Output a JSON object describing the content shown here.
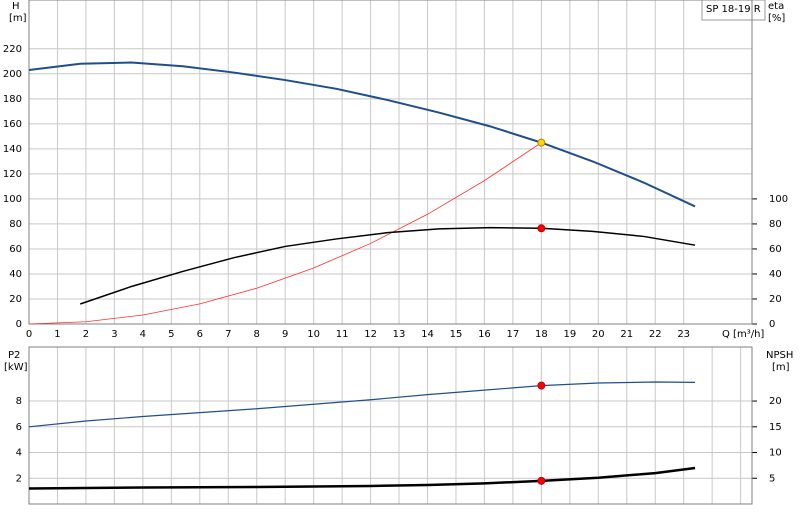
{
  "chart_data": [
    {
      "type": "line",
      "title": "SP 18-19 R",
      "xlabel": "Q [m³/h]",
      "ylabel": "H",
      "yunit": "[m]",
      "y2label": "eta",
      "y2unit": "[%]",
      "xlim": [
        0,
        25.4
      ],
      "xticks": [
        0,
        1,
        2,
        3,
        4,
        5,
        6,
        7,
        8,
        9,
        10,
        11,
        12,
        13,
        14,
        15,
        16,
        17,
        18,
        19,
        20,
        21,
        22,
        23
      ],
      "ylim": [
        0,
        259
      ],
      "yticks": [
        0,
        20,
        40,
        60,
        80,
        100,
        120,
        140,
        160,
        180,
        200,
        220
      ],
      "y2lim": [
        0,
        259
      ],
      "y2ticks": [
        0,
        20,
        40,
        60,
        80,
        100
      ],
      "grid": true,
      "xtick_labels": true,
      "series": [
        {
          "color": "#1f4e8c",
          "width": 2,
          "x": [
            0,
            1.8,
            3.6,
            5.4,
            7.2,
            9,
            10.8,
            12.6,
            14.4,
            16.2,
            18,
            19.8,
            21.6,
            23.4
          ],
          "values": [
            203,
            208,
            209,
            206,
            201,
            195,
            188,
            179,
            169,
            158,
            145,
            130,
            113,
            94
          ]
        },
        {
          "color": "#ff3030",
          "width": 0.8,
          "x": [
            0,
            2,
            4,
            6,
            8,
            10,
            12,
            14,
            16,
            18
          ],
          "values": [
            0,
            1.8,
            7.2,
            16.1,
            28.6,
            44.8,
            64.4,
            87.7,
            114.6,
            145
          ]
        },
        {
          "color": "#000000",
          "width": 1.5,
          "axis": "y2",
          "x": [
            1.8,
            3.6,
            5.4,
            7.2,
            9,
            10.8,
            12.6,
            14.4,
            16.2,
            18,
            19.8,
            21.6,
            23.4
          ],
          "values": [
            16,
            30,
            42,
            53,
            62,
            68,
            73,
            76,
            77,
            76.5,
            74,
            70,
            63
          ]
        },
        {
          "color": "#ffd700",
          "marker": true,
          "x": [
            18
          ],
          "values": [
            145
          ]
        },
        {
          "color": "#ff0000",
          "marker": true,
          "axis": "y2",
          "x": [
            18
          ],
          "values": [
            76.5
          ]
        }
      ]
    },
    {
      "type": "line",
      "ylabel": "P2",
      "yunit": "[kW]",
      "y2label": "NPSH",
      "y2unit": "[m]",
      "xlim": [
        0,
        25.4
      ],
      "xticks": [
        0,
        1,
        2,
        3,
        4,
        5,
        6,
        7,
        8,
        9,
        10,
        11,
        12,
        13,
        14,
        15,
        16,
        17,
        18,
        19,
        20,
        21,
        22,
        23,
        24,
        25
      ],
      "ylim": [
        0,
        12.2
      ],
      "yticks": [
        2,
        4,
        6,
        8
      ],
      "y2lim": [
        0,
        30.5
      ],
      "y2ticks": [
        5,
        10,
        15,
        20
      ],
      "grid": true,
      "xtick_labels": false,
      "series": [
        {
          "color": "#1f4e8c",
          "width": 1.2,
          "x": [
            0,
            2,
            4,
            6,
            8,
            10,
            12,
            14,
            16,
            18,
            20,
            22,
            23.4
          ],
          "values": [
            6.0,
            6.45,
            6.8,
            7.1,
            7.4,
            7.75,
            8.1,
            8.5,
            8.85,
            9.2,
            9.4,
            9.48,
            9.45
          ]
        },
        {
          "color": "#000000",
          "width": 2.5,
          "axis": "y2",
          "x": [
            0,
            4,
            8,
            12,
            14,
            16,
            18,
            20,
            22,
            23.4
          ],
          "values": [
            3.0,
            3.2,
            3.3,
            3.5,
            3.7,
            4.0,
            4.5,
            5.1,
            6.0,
            7.0
          ]
        },
        {
          "color": "#ff0000",
          "marker": true,
          "x": [
            18
          ],
          "values": [
            9.2
          ]
        },
        {
          "color": "#ff0000",
          "marker": true,
          "axis": "y2",
          "x": [
            18
          ],
          "values": [
            4.5
          ]
        }
      ]
    }
  ]
}
